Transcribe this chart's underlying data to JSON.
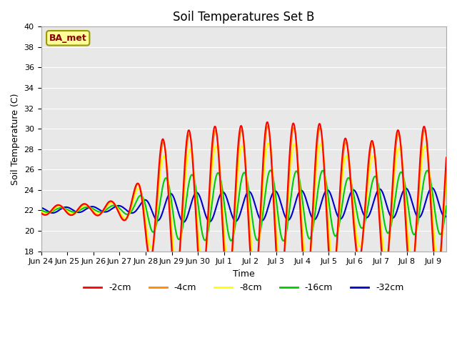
{
  "title": "Soil Temperatures Set B",
  "xlabel": "Time",
  "ylabel": "Soil Temperature (C)",
  "ylim": [
    18,
    40
  ],
  "yticks": [
    18,
    20,
    22,
    24,
    26,
    28,
    30,
    32,
    34,
    36,
    38,
    40
  ],
  "xtick_labels": [
    "Jun 24",
    "Jun 25",
    "Jun 26",
    "Jun 27",
    "Jun 28",
    "Jun 29",
    "Jun 30",
    "Jul 1",
    "Jul 2",
    "Jul 3",
    "Jul 4",
    "Jul 5",
    "Jul 6",
    "Jul 7",
    "Jul 8",
    "Jul 9"
  ],
  "n_days": 15.5,
  "n_points": 3720,
  "bg_color": "#e8e8e8",
  "fig_color": "#ffffff",
  "colors_minus2": "#ff0000",
  "colors_minus4": "#ff8800",
  "colors_minus8": "#ffff00",
  "colors_minus16": "#00cc00",
  "colors_minus32": "#0000cc",
  "label_box_text": "BA_met",
  "label_box_bg": "#ffff99",
  "label_box_edge": "#999900",
  "label_box_text_color": "#880000"
}
